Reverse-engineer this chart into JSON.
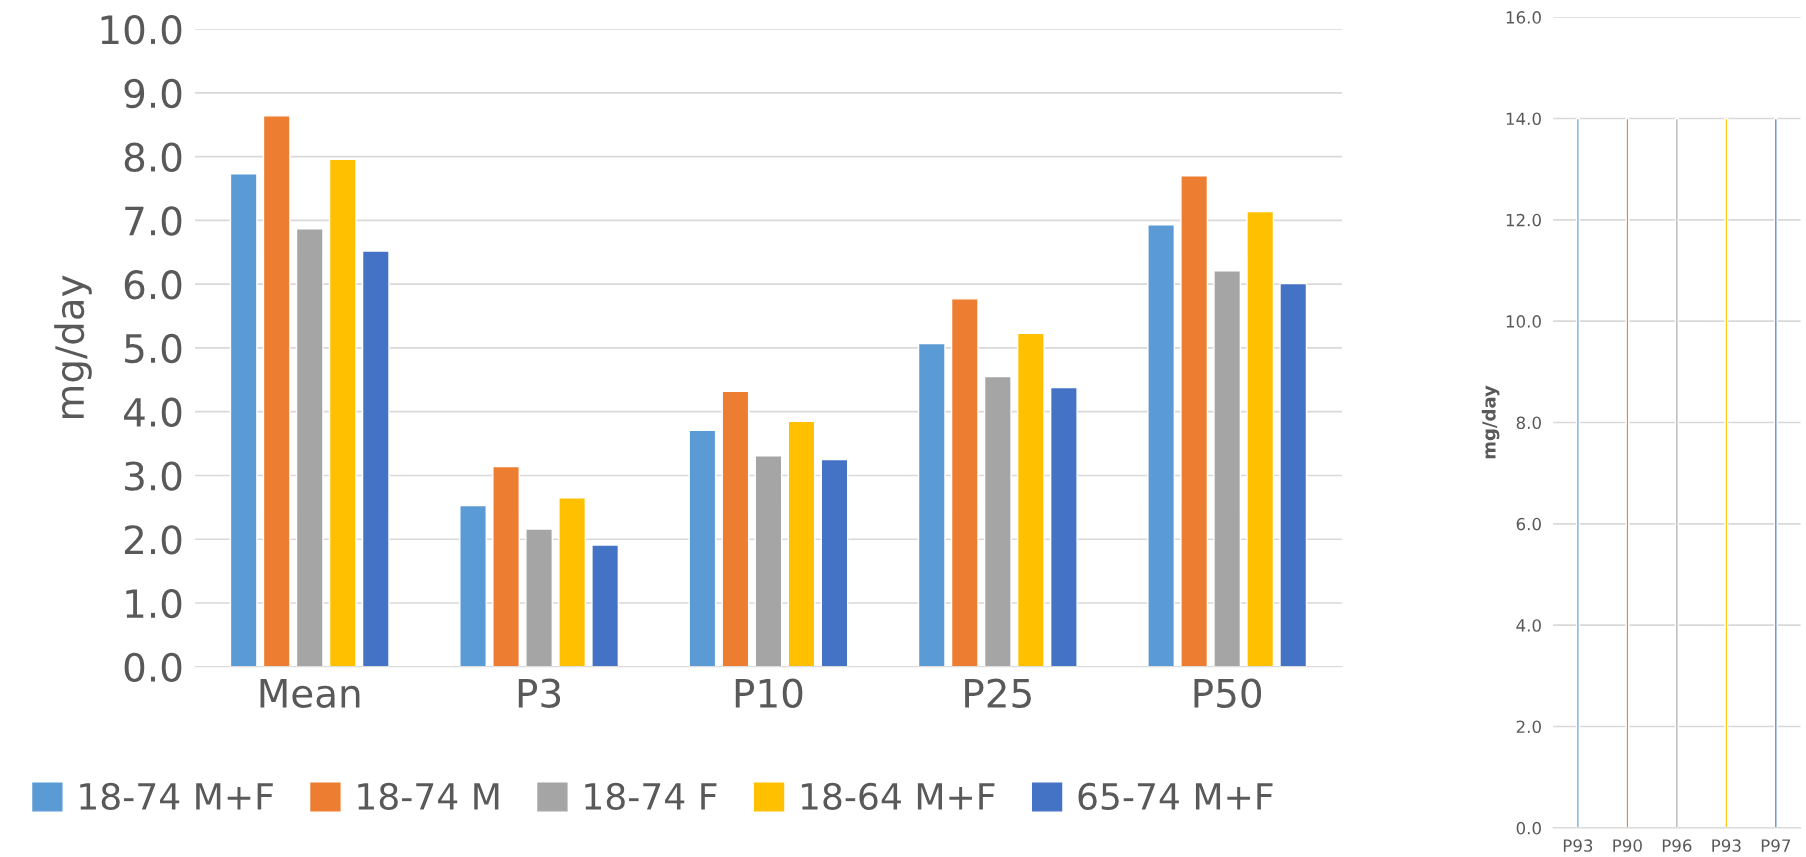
{
  "chart_data": [
    {
      "type": "bar",
      "categories": [
        "Mean",
        "P3",
        "P10",
        "P25",
        "P50"
      ],
      "ylabel": "mg/day",
      "ylim": [
        0,
        10
      ],
      "yticks": [
        {
          "value": 0,
          "label": "0.0"
        },
        {
          "value": 1,
          "label": "1.0"
        },
        {
          "value": 2,
          "label": "2.0"
        },
        {
          "value": 3,
          "label": "3.0"
        },
        {
          "value": 4,
          "label": "4.0"
        },
        {
          "value": 5,
          "label": "5.0"
        },
        {
          "value": 6,
          "label": "6.0"
        },
        {
          "value": 7,
          "label": "7.0"
        },
        {
          "value": 8,
          "label": "8.0"
        },
        {
          "value": 9,
          "label": "9.0"
        },
        {
          "value": 10,
          "label": "10.0"
        }
      ],
      "grid": "y",
      "legend": "bottom",
      "series": [
        {
          "name": "18-74 M+F",
          "color": "#5b9bd5",
          "values": [
            7.73,
            2.53,
            3.71,
            5.07,
            6.93
          ]
        },
        {
          "name": "18-74 M",
          "color": "#ed7d31",
          "values": [
            8.64,
            3.14,
            4.32,
            5.77,
            7.7
          ]
        },
        {
          "name": "18-74 F",
          "color": "#a5a5a5",
          "values": [
            6.87,
            2.16,
            3.31,
            4.55,
            6.21
          ]
        },
        {
          "name": "18-64 M+F",
          "color": "#ffc000",
          "values": [
            7.96,
            2.65,
            3.85,
            5.23,
            7.14
          ]
        },
        {
          "name": "65-74 M+F",
          "color": "#4472c4",
          "values": [
            6.52,
            1.91,
            3.25,
            4.38,
            6.01
          ]
        }
      ]
    },
    {
      "type": "bar",
      "categories": [
        "P93",
        "P90",
        "P96",
        "P93",
        "P97"
      ],
      "ylabel": "mg/day",
      "ylim": [
        0,
        16
      ],
      "yticks": [
        {
          "value": 0,
          "label": "0.0"
        },
        {
          "value": 2,
          "label": "2.0"
        },
        {
          "value": 4,
          "label": "4.0"
        },
        {
          "value": 6,
          "label": "6.0"
        },
        {
          "value": 8,
          "label": "8.0"
        },
        {
          "value": 10,
          "label": "10.0"
        },
        {
          "value": 12,
          "label": "12.0"
        },
        {
          "value": 14,
          "label": "14.0"
        },
        {
          "value": 16,
          "label": "16.0"
        }
      ],
      "grid": "y",
      "values": [
        14,
        14,
        14,
        14,
        14
      ],
      "colors": [
        "#5b9bd5",
        "#ed7d31",
        "#a5a5a5",
        "#ffc000",
        "#4472c4"
      ]
    }
  ]
}
